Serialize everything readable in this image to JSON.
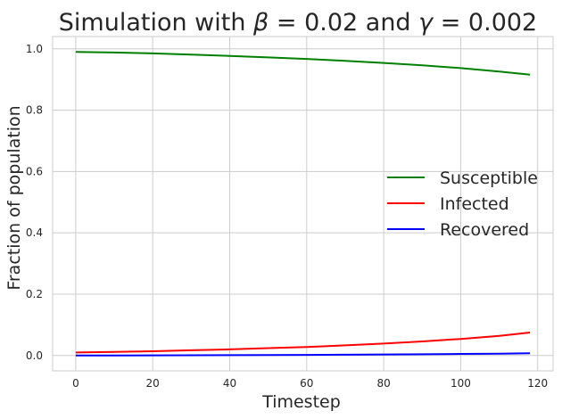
{
  "chart_data": {
    "type": "line",
    "title": "Simulation with β = 0.02 and γ = 0.002",
    "title_parts": {
      "prefix": "Simulation with ",
      "beta_symbol": "β",
      "beta_value": " = 0.02",
      "middle": " and ",
      "gamma_symbol": "γ",
      "gamma_value": " = 0.002"
    },
    "xlabel": "Timestep",
    "ylabel": "Fraction of population",
    "xlim": [
      -6,
      124
    ],
    "ylim": [
      -0.05,
      1.04
    ],
    "xticks": [
      0,
      20,
      40,
      60,
      80,
      100,
      120
    ],
    "xtick_labels": [
      "0",
      "20",
      "40",
      "60",
      "80",
      "100",
      "120"
    ],
    "yticks": [
      0.0,
      0.2,
      0.4,
      0.6,
      0.8,
      1.0
    ],
    "ytick_labels": [
      "0.0",
      "0.2",
      "0.4",
      "0.6",
      "0.8",
      "1.0"
    ],
    "grid": true,
    "legend_position": "center-right",
    "x": [
      0,
      10,
      20,
      30,
      40,
      50,
      60,
      70,
      80,
      90,
      100,
      110,
      118
    ],
    "series": [
      {
        "name": "Susceptible",
        "color": "#008000",
        "values": [
          0.99,
          0.988,
          0.985,
          0.981,
          0.977,
          0.972,
          0.967,
          0.961,
          0.954,
          0.946,
          0.937,
          0.926,
          0.916
        ]
      },
      {
        "name": "Infected",
        "color": "#ff0000",
        "values": [
          0.01,
          0.012,
          0.014,
          0.017,
          0.02,
          0.024,
          0.028,
          0.033,
          0.039,
          0.046,
          0.054,
          0.064,
          0.075
        ]
      },
      {
        "name": "Recovered",
        "color": "#0000ff",
        "values": [
          0.0,
          0.0002,
          0.0005,
          0.0008,
          0.0012,
          0.0016,
          0.0021,
          0.0027,
          0.0034,
          0.0042,
          0.0051,
          0.0062,
          0.0072
        ]
      }
    ]
  }
}
